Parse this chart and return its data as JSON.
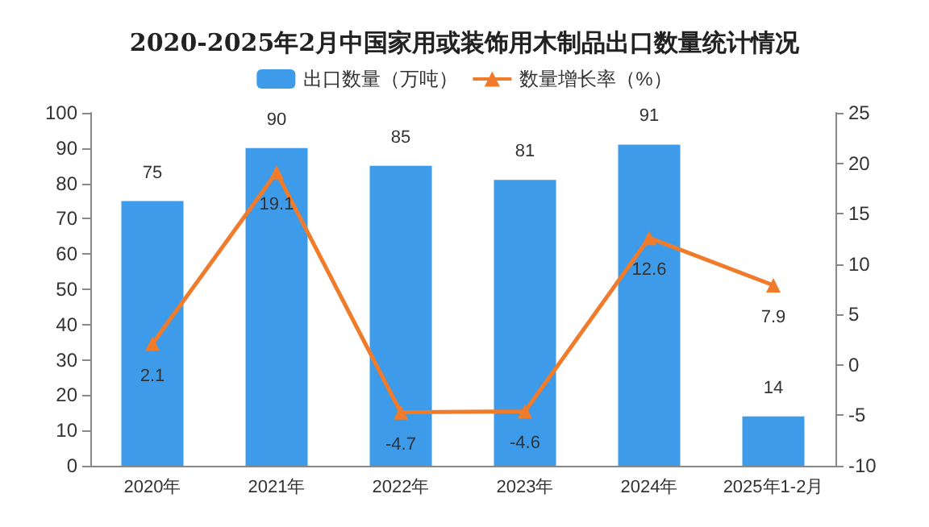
{
  "chart_data": {
    "type": "bar",
    "title": "2020-2025年2月中国家用或装饰用木制品出口数量统计情况",
    "categories": [
      "2020年",
      "2021年",
      "2022年",
      "2023年",
      "2024年",
      "2025年1-2月"
    ],
    "series": [
      {
        "name": "出口数量（万吨）",
        "color": "#3d9bea",
        "values": [
          75,
          90,
          85,
          81,
          91,
          14
        ]
      },
      {
        "name": "数量增长率（%）",
        "type": "line",
        "axis": "y2",
        "color": "#f07b2a",
        "marker": "triangle",
        "values": [
          2.1,
          19.1,
          -4.7,
          -4.6,
          12.6,
          7.9
        ]
      }
    ],
    "ylim": [
      0,
      100
    ],
    "yticks": [
      0,
      10,
      20,
      30,
      40,
      50,
      60,
      70,
      80,
      90,
      100
    ],
    "y2lim": [
      -10,
      25
    ],
    "y2ticks": [
      -10,
      -5,
      0,
      5,
      10,
      15,
      20,
      25
    ],
    "data_labels": true,
    "legend": "top",
    "grid": false
  }
}
